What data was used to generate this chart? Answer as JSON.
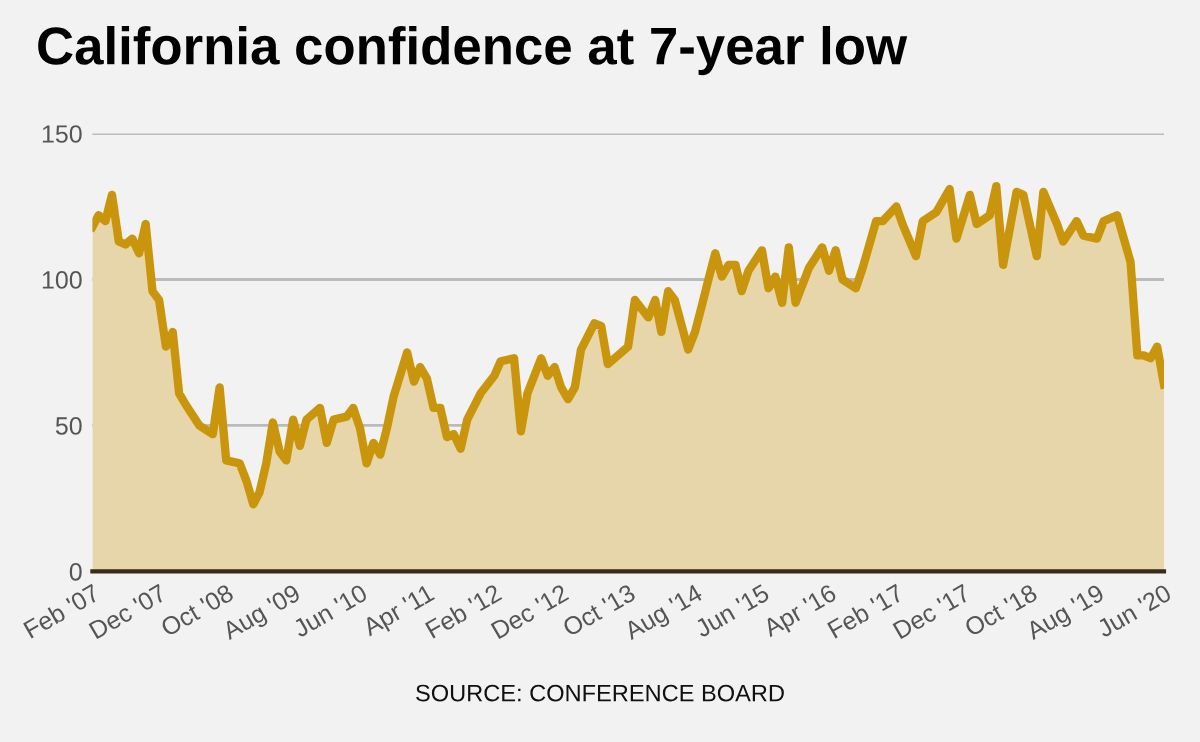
{
  "chart_data": {
    "type": "area",
    "title": "California confidence at 7-year low",
    "annotations": [
      "SOURCE: CONFERENCE BOARD"
    ],
    "xlim": [
      "2007-02",
      "2020-06"
    ],
    "ylim": [
      0,
      150
    ],
    "yticks": [
      0,
      50,
      100,
      150
    ],
    "xticks": [
      {
        "value": "2007-02",
        "label": "Feb '07"
      },
      {
        "value": "2007-12",
        "label": "Dec '07"
      },
      {
        "value": "2008-10",
        "label": "Oct '08"
      },
      {
        "value": "2009-08",
        "label": "Aug '09"
      },
      {
        "value": "2010-06",
        "label": "Jun '10"
      },
      {
        "value": "2011-04",
        "label": "Apr '11"
      },
      {
        "value": "2012-02",
        "label": "Feb '12"
      },
      {
        "value": "2012-12",
        "label": "Dec '12"
      },
      {
        "value": "2013-10",
        "label": "Oct '13"
      },
      {
        "value": "2014-08",
        "label": "Aug '14"
      },
      {
        "value": "2015-06",
        "label": "Jun '15"
      },
      {
        "value": "2016-04",
        "label": "Apr '16"
      },
      {
        "value": "2017-02",
        "label": "Feb '17"
      },
      {
        "value": "2017-12",
        "label": "Dec '17"
      },
      {
        "value": "2018-10",
        "label": "Oct '18"
      },
      {
        "value": "2019-08",
        "label": "Aug '19"
      },
      {
        "value": "2020-06",
        "label": "Jun '20"
      }
    ],
    "grid": "y",
    "legend": false,
    "marker": "none",
    "line_style": "solid",
    "series": [
      {
        "color": "#c9950c",
        "x": [
          "2007-02",
          "2007-03",
          "2007-04",
          "2007-05",
          "2007-06",
          "2007-07",
          "2007-08",
          "2007-09",
          "2007-10",
          "2007-11",
          "2007-12",
          "2008-01",
          "2008-02",
          "2008-03",
          "2008-04",
          "2008-06",
          "2008-08",
          "2008-09",
          "2008-10",
          "2008-12",
          "2009-01",
          "2009-02",
          "2009-03",
          "2009-04",
          "2009-05",
          "2009-06",
          "2009-07",
          "2009-08",
          "2009-09",
          "2009-10",
          "2009-12",
          "2010-01",
          "2010-02",
          "2010-04",
          "2010-05",
          "2010-06",
          "2010-07",
          "2010-08",
          "2010-09",
          "2010-10",
          "2010-11",
          "2011-01",
          "2011-02",
          "2011-03",
          "2011-04",
          "2011-05",
          "2011-06",
          "2011-07",
          "2011-08",
          "2011-09",
          "2011-10",
          "2011-12",
          "2012-02",
          "2012-03",
          "2012-05",
          "2012-06",
          "2012-07",
          "2012-09",
          "2012-10",
          "2012-11",
          "2012-12",
          "2013-01",
          "2013-02",
          "2013-03",
          "2013-05",
          "2013-06",
          "2013-07",
          "2013-09",
          "2013-10",
          "2013-11",
          "2014-01",
          "2014-02",
          "2014-03",
          "2014-04",
          "2014-05",
          "2014-07",
          "2014-08",
          "2014-09",
          "2014-10",
          "2014-11",
          "2014-12",
          "2015-01",
          "2015-02",
          "2015-03",
          "2015-04",
          "2015-06",
          "2015-07",
          "2015-08",
          "2015-09",
          "2015-10",
          "2015-11",
          "2016-01",
          "2016-03",
          "2016-04",
          "2016-05",
          "2016-06",
          "2016-08",
          "2016-09",
          "2016-11",
          "2016-12",
          "2017-02",
          "2017-03",
          "2017-05",
          "2017-06",
          "2017-08",
          "2017-10",
          "2017-11",
          "2018-01",
          "2018-02",
          "2018-04",
          "2018-05",
          "2018-06",
          "2018-08",
          "2018-09",
          "2018-11",
          "2018-12",
          "2019-02",
          "2019-03",
          "2019-05",
          "2019-06",
          "2019-08",
          "2019-09",
          "2019-11",
          "2020-01",
          "2020-02",
          "2020-03",
          "2020-04",
          "2020-05",
          "2020-06"
        ],
        "values": [
          118,
          122,
          120,
          129,
          113,
          112,
          114,
          109,
          119,
          96,
          93,
          77,
          82,
          61,
          57,
          50,
          47,
          63,
          38,
          37,
          31,
          23,
          27,
          37,
          51,
          41,
          38,
          52,
          43,
          52,
          56,
          44,
          52,
          53,
          56,
          49,
          37,
          44,
          40,
          49,
          60,
          75,
          65,
          70,
          66,
          56,
          56,
          46,
          47,
          42,
          52,
          61,
          67,
          72,
          73,
          48,
          61,
          73,
          67,
          70,
          63,
          59,
          63,
          76,
          85,
          84,
          71,
          75,
          77,
          93,
          87,
          93,
          82,
          96,
          93,
          76,
          82,
          91,
          100,
          109,
          101,
          105,
          105,
          96,
          103,
          110,
          97,
          101,
          92,
          111,
          92,
          104,
          111,
          103,
          110,
          100,
          97,
          104,
          120,
          120,
          125,
          119,
          108,
          120,
          123,
          131,
          114,
          129,
          119,
          122,
          132,
          105,
          130,
          129,
          108,
          130,
          119,
          113,
          120,
          115,
          114,
          120,
          122,
          106,
          74,
          74,
          73,
          77,
          64
        ]
      }
    ]
  }
}
